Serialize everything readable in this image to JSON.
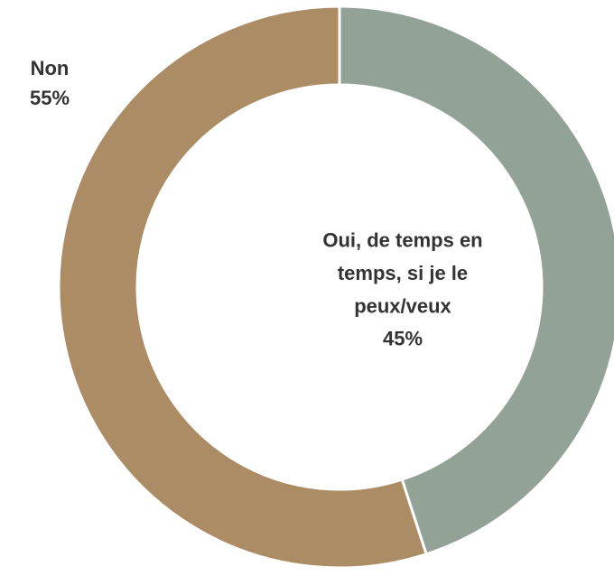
{
  "chart_data": {
    "type": "donut",
    "categories": [
      "Oui, de temps en temps, si je le peux/veux",
      "Non"
    ],
    "values": [
      45,
      55
    ],
    "value_labels": [
      "45%",
      "55%"
    ],
    "colors": [
      "#93a297",
      "#ab8c64"
    ]
  }
}
